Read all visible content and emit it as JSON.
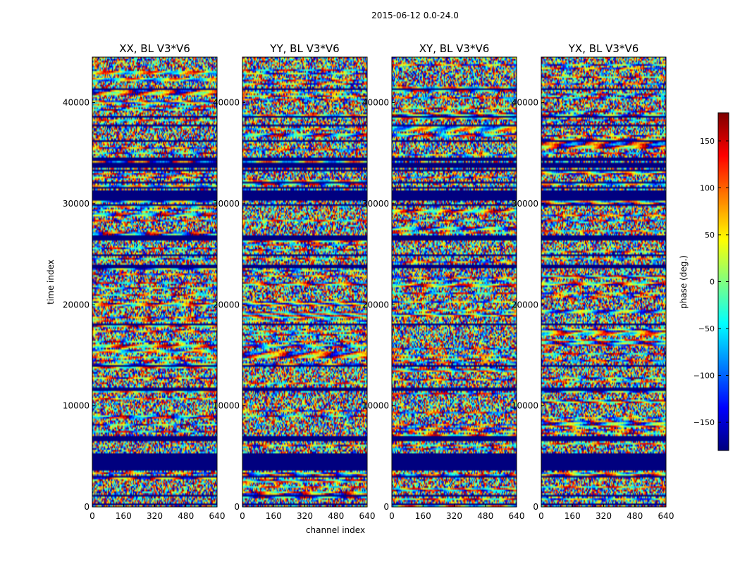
{
  "figure": {
    "suptitle": "2015-06-12 0.0-24.0"
  },
  "chart_data": {
    "type": "heatmap",
    "xlabel": "channel index",
    "ylabel": "time index",
    "xlim": [
      0,
      640
    ],
    "ylim": [
      0,
      44500
    ],
    "xticks": [
      0,
      160,
      320,
      480,
      640
    ],
    "yticks": [
      0,
      10000,
      20000,
      30000,
      40000
    ],
    "panels": [
      {
        "title": "XX, BL V3*V6"
      },
      {
        "title": "YY, BL V3*V6"
      },
      {
        "title": "XY, BL V3*V6"
      },
      {
        "title": "YX, BL V3*V6"
      }
    ],
    "colorbar": {
      "label": "phase (deg.)",
      "range": [
        -180,
        180
      ],
      "ticks": [
        150,
        100,
        50,
        0,
        -50,
        -100,
        -150
      ],
      "tick_labels": [
        "150",
        "100",
        "50",
        "0",
        "−50",
        "−100",
        "−150"
      ],
      "colormap": "jet"
    },
    "flagged_time_ranges": [
      [
        3700,
        5300
      ],
      [
        30300,
        31300
      ],
      [
        33500,
        34000
      ],
      [
        26400,
        26900
      ],
      [
        23600,
        24000
      ]
    ],
    "colors": {
      "flagged": "#00007f",
      "background": "#ffffff",
      "frame": "#000000"
    }
  }
}
